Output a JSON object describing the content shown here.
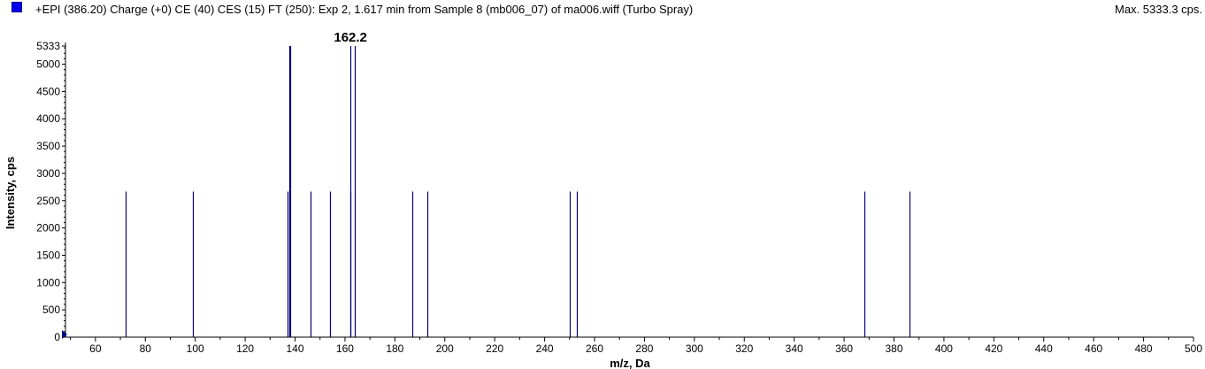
{
  "header": {
    "title": "+EPI (386.20) Charge (+0) CE (40) CES (15) FT (250): Exp 2, 1.617 min from Sample 8 (mb006_07) of ma006.wiff (Turbo Spray)",
    "max_label": "Max. 5333.3 cps."
  },
  "colors": {
    "series": "#000080",
    "swatch": "#0000ee"
  },
  "chart_data": {
    "type": "bar",
    "xlabel": "m/z, Da",
    "ylabel": "Intensity, cps",
    "xlim": [
      48,
      500
    ],
    "ylim": [
      0,
      5333
    ],
    "x_ticks": [
      60,
      80,
      100,
      120,
      140,
      160,
      180,
      200,
      220,
      240,
      260,
      280,
      300,
      320,
      340,
      360,
      380,
      400,
      420,
      440,
      460,
      480,
      500
    ],
    "y_ticks": [
      0,
      500,
      1000,
      1500,
      2000,
      2500,
      3000,
      3500,
      4000,
      4500,
      5000,
      5333
    ],
    "grid": false,
    "annotations": [
      {
        "x": 162.2,
        "label": "162.2"
      }
    ],
    "series": [
      {
        "x": [
          72.1,
          99.2,
          137.1,
          137.6,
          138.2,
          146.1,
          154.1,
          162.0,
          162.2,
          163.9,
          187.1,
          193.0,
          250.1,
          252.8,
          368.2,
          386.2
        ],
        "values": [
          2667,
          2667,
          2667,
          5333,
          5333,
          2667,
          2667,
          2667,
          5333,
          5333,
          2667,
          2667,
          2667,
          2667,
          2667,
          2667
        ]
      }
    ]
  }
}
